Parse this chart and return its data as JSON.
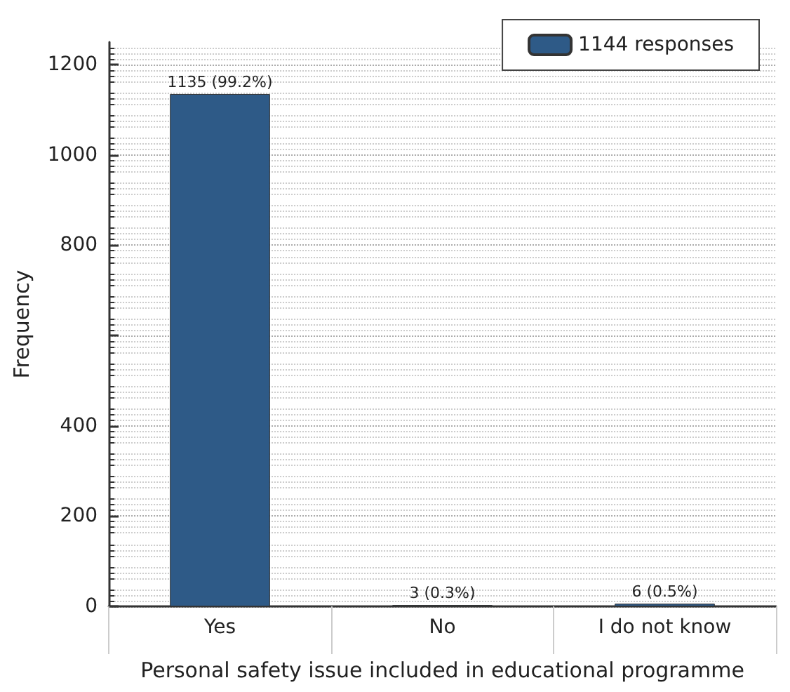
{
  "chart_data": {
    "type": "bar",
    "xlabel": "Personal safety issue included in educational programme",
    "ylabel": "Frequency",
    "categories": [
      "Yes",
      "No",
      "I do not know"
    ],
    "series": [
      {
        "name": "1144 responses",
        "color": "#2e5a87",
        "values": [
          1135,
          3,
          6
        ],
        "value_labels": [
          "1135 (99.2%)",
          "3 (0.3%)",
          "6 (0.5%)"
        ]
      }
    ],
    "ylim": [
      0,
      1250
    ],
    "yticks": [
      0,
      200,
      400,
      {
        "value": 600,
        "label": null
      },
      800,
      1000,
      1200
    ],
    "grid": "y",
    "legend": "top right"
  }
}
